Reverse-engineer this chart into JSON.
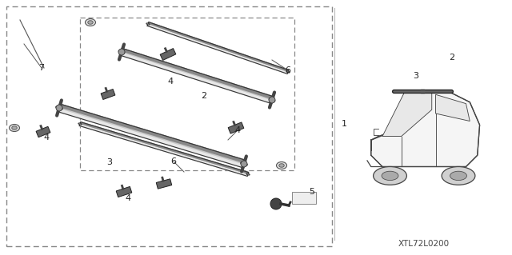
{
  "background_color": "#ffffff",
  "figure_width": 6.4,
  "figure_height": 3.19,
  "dpi": 100,
  "part_code": "XTL72L0200",
  "line_color": "#555555",
  "dark_color": "#333333",
  "light_color": "#cccccc",
  "dash_color": "#777777"
}
